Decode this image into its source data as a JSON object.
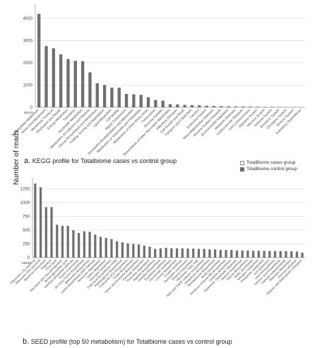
{
  "figure": {
    "ylabel": "Number of reads",
    "legend": [
      {
        "name": "TotalBiome cases group",
        "color": "#ffffff"
      },
      {
        "name": "TotalBiome control group",
        "color": "#6f6f6f"
      }
    ]
  },
  "chart_data": [
    {
      "type": "bar",
      "panel_letter": "a.",
      "title": "KEGG profile for Totalbiome cases vs control group",
      "axis_name": "KEGG",
      "ylim": [
        0,
        4500
      ],
      "yticks": [
        0,
        1000,
        2000,
        3000,
        4000
      ],
      "grid": true,
      "categories": [
        "Carbohydrate Metabolism",
        "Amino Acid Metabolism",
        "Membrane Transport",
        "Replication and Repair",
        "Energy Metabolism",
        "Translation",
        "Nucleotide Metabolism",
        "Metabolism of Cofactors and Vitamins",
        "Glycan Biosynthesis and Metabolism",
        "Folding, Sorting and Degradation",
        "Lipid Metabolism",
        "Cell Motility",
        "Signal Transduction",
        "Xenobiotics Biodegradation and Metabolism",
        "Metabolism of Terpenoids and Polyketides",
        "Metabolism of Other Amino Acids",
        "Transcription",
        "Enzyme Families",
        "Biosynthesis of Other Secondary Metabolites",
        "Infectious Diseases",
        "Cell Growth and Death",
        "Transport and Catabolism",
        "Cancers",
        "Endocrine System",
        "Neurodegenerative Diseases",
        "Immune System Diseases",
        "Environmental Adaptation",
        "Metabolic Diseases",
        "Cardiovascular Diseases",
        "Cell Communication",
        "Digestive System",
        "Nervous System",
        "Immune System",
        "Excretory System",
        "Circulatory System",
        "Sensory System",
        "Substance Dependence"
      ],
      "series": [
        {
          "name": "TotalBiome cases group",
          "values": [
            0,
            0,
            0,
            0,
            0,
            0,
            0,
            0,
            0,
            0,
            0,
            0,
            0,
            0,
            0,
            0,
            0,
            0,
            0,
            0,
            0,
            0,
            0,
            0,
            0,
            0,
            0,
            0,
            0,
            0,
            0,
            0,
            0,
            0,
            0,
            0,
            0
          ]
        },
        {
          "name": "TotalBiome control group",
          "values": [
            4200,
            2750,
            2650,
            2380,
            2170,
            2090,
            2070,
            1570,
            1080,
            1000,
            880,
            880,
            600,
            580,
            560,
            450,
            330,
            300,
            140,
            130,
            110,
            100,
            90,
            70,
            60,
            50,
            45,
            40,
            35,
            30,
            25,
            20,
            20,
            15,
            10,
            10,
            5
          ]
        }
      ]
    },
    {
      "type": "bar",
      "panel_letter": "b.",
      "title": "SEED profile (top 50 metabolism) for Totalbiome cases vs control group",
      "axis_name": "SEED",
      "ylim": [
        0,
        1400
      ],
      "yticks": [
        0,
        250,
        500,
        750,
        1000,
        1250
      ],
      "grid": true,
      "categories": [
        "Ribosome LSU bacterial",
        "Ribosome SSU bacterial",
        "Bacterial Chemotaxis",
        "Flagellum",
        "TCA Cycle",
        "Glycolysis and Gluconeogenesis",
        "Serine-glyoxylate cycle",
        "Pentose phosphate pathway",
        "Purine conversions",
        "De Novo Purine Biosynthesis",
        "Methionine Biosynthesis",
        "Lysine Biosynthesis DAP Pathway",
        "Isoleucine degradation",
        "Valine degradation",
        "Glycogen metabolism",
        "Fatty Acid Biosynthesis FASII",
        "Peptidoglycan Biosynthesis",
        "Coenzyme B12 biosynthesis",
        "Folate Biosynthesis",
        "Heme and Siroheme Biosynthesis",
        "Pyruvate metabolism",
        "Threonine degradation",
        "Arginine Biosynthesis",
        "Histidine Biosynthesis",
        "Tryptophan synthesis",
        "Chorismate Synthesis",
        "Leucine Biosynthesis",
        "Proline Synthesis",
        "Pyrimidine conversions",
        "Thiamin biosynthesis",
        "Riboflavin, FMN, FAD",
        "NAD and NADP cofactor biosynthesis",
        "Ubiquinone Biosynthesis",
        "Menaquinone Biosynthesis",
        "Biotin biosynthesis",
        "Pyridoxin (Vitamin B6) Biosynthesis",
        "Cysteine Biosynthesis",
        "Glutamine, Glutamate, Aspartate",
        "Alanine biosynthesis",
        "Glycine Biosynthesis",
        "Sulfur assimilation",
        "Nitrogen metabolism",
        "Phosphate metabolism",
        "Iron acquisition",
        "Lipid A biosynthesis",
        "Teichoic acid biosynthesis",
        "Capsular polysaccharide",
        "Mannose Metabolism",
        "Sucrose utilization",
        "Maltose and Maltodextrin Utilization"
      ],
      "series": [
        {
          "name": "TotalBiome cases group",
          "values": [
            0,
            0,
            0,
            0,
            0,
            0,
            0,
            0,
            0,
            0,
            0,
            0,
            0,
            0,
            0,
            0,
            0,
            0,
            0,
            0,
            0,
            0,
            0,
            0,
            0,
            0,
            0,
            0,
            0,
            0,
            0,
            0,
            0,
            0,
            0,
            0,
            0,
            0,
            0,
            0,
            0,
            0,
            0,
            0,
            0,
            0,
            0,
            0,
            0,
            0
          ]
        },
        {
          "name": "TotalBiome control group",
          "values": [
            1350,
            1280,
            920,
            920,
            600,
            580,
            580,
            500,
            450,
            480,
            470,
            420,
            380,
            360,
            340,
            300,
            280,
            260,
            250,
            240,
            220,
            200,
            160,
            170,
            180,
            170,
            170,
            170,
            165,
            165,
            160,
            160,
            150,
            150,
            140,
            140,
            140,
            130,
            130,
            130,
            125,
            125,
            125,
            120,
            120,
            120,
            120,
            115,
            110,
            90
          ]
        }
      ]
    }
  ]
}
